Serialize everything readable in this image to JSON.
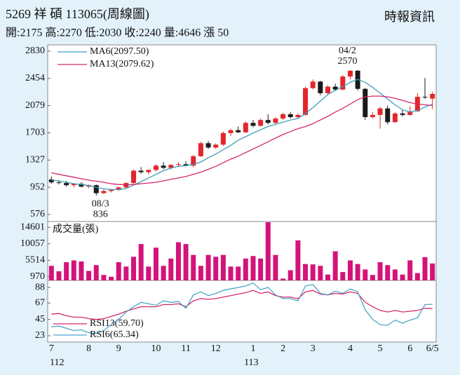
{
  "chart_data": [
    {
      "type": "candlestick",
      "title": "5269 祥 碩 113065(周線圖)",
      "subtitle": "開:2175 高:2270 低:2030 收:2240 量:4646 漲 50",
      "source": "時報資訊",
      "categories": [
        "7",
        null,
        null,
        null,
        null,
        "8",
        null,
        null,
        null,
        "9",
        null,
        null,
        null,
        null,
        "10",
        null,
        null,
        null,
        "11",
        null,
        null,
        null,
        "12",
        null,
        null,
        null,
        null,
        "1",
        null,
        null,
        null,
        "2",
        null,
        null,
        null,
        "3",
        null,
        null,
        null,
        null,
        "4",
        null,
        null,
        null,
        "5",
        null,
        null,
        null,
        "6",
        null,
        null,
        "6/5"
      ],
      "open": [
        1060,
        1020,
        1010,
        980,
        1000,
        960,
        980,
        870,
        900,
        915,
        950,
        1010,
        1180,
        1160,
        1190,
        1250,
        1220,
        1260,
        1270,
        1250,
        1380,
        1560,
        1500,
        1540,
        1700,
        1740,
        1710,
        1840,
        1800,
        1880,
        1840,
        1900,
        1960,
        1920,
        1950,
        2320,
        2410,
        2250,
        2340,
        2300,
        2480,
        2560,
        2310,
        1920,
        1950,
        2040,
        1850,
        1970,
        1950,
        2000,
        2200,
        2175
      ],
      "high": [
        1100,
        1050,
        1040,
        1010,
        1020,
        990,
        990,
        920,
        930,
        960,
        1020,
        1200,
        1230,
        1200,
        1270,
        1300,
        1270,
        1300,
        1310,
        1400,
        1580,
        1590,
        1560,
        1720,
        1760,
        1790,
        1860,
        1880,
        1900,
        1960,
        1920,
        1980,
        1990,
        1970,
        2340,
        2440,
        2420,
        2360,
        2380,
        2500,
        2570,
        2570,
        2320,
        1990,
        2060,
        2080,
        1990,
        2020,
        2070,
        2250,
        2460,
        2270
      ],
      "low": [
        1000,
        990,
        960,
        950,
        950,
        940,
        836,
        860,
        880,
        900,
        930,
        1000,
        1140,
        1130,
        1170,
        1200,
        1200,
        1230,
        1240,
        1230,
        1370,
        1480,
        1480,
        1520,
        1660,
        1700,
        1700,
        1780,
        1790,
        1820,
        1820,
        1880,
        1900,
        1900,
        1940,
        2300,
        2220,
        2220,
        2280,
        2290,
        2440,
        2290,
        1880,
        1900,
        1760,
        1820,
        1840,
        1930,
        1940,
        1990,
        2170,
        2030
      ],
      "close": [
        1020,
        1010,
        980,
        1000,
        960,
        980,
        870,
        900,
        915,
        950,
        1010,
        1180,
        1160,
        1190,
        1250,
        1220,
        1260,
        1270,
        1250,
        1380,
        1560,
        1500,
        1540,
        1700,
        1740,
        1710,
        1840,
        1800,
        1880,
        1840,
        1900,
        1960,
        1920,
        1950,
        2320,
        2410,
        2250,
        2340,
        2300,
        2480,
        2560,
        2310,
        1920,
        1950,
        2040,
        1850,
        1970,
        1950,
        2000,
        2200,
        2190,
        2240
      ],
      "up_color": "#e3262c",
      "down_color": "#1a1a1a",
      "ylim": [
        479,
        2917
      ],
      "yticks": [
        2830,
        2454,
        2079,
        1703,
        1327,
        952,
        576
      ],
      "series": [
        {
          "name": "MA6(2097.50)",
          "color": "#3f9fb8",
          "values": [
            1050,
            1040,
            1020,
            1000,
            990,
            975,
            950,
            930,
            920,
            920,
            935,
            980,
            1030,
            1080,
            1130,
            1180,
            1215,
            1240,
            1250,
            1265,
            1300,
            1360,
            1410,
            1470,
            1530,
            1600,
            1650,
            1700,
            1745,
            1790,
            1820,
            1850,
            1880,
            1900,
            1970,
            2050,
            2140,
            2230,
            2290,
            2340,
            2400,
            2440,
            2400,
            2330,
            2250,
            2170,
            2090,
            2020,
            1990,
            2010,
            2060,
            2097.5
          ]
        },
        {
          "name": "MA13(2079.62)",
          "color": "#d6286e",
          "values": [
            1150,
            1130,
            1110,
            1090,
            1070,
            1050,
            1035,
            1020,
            1000,
            990,
            985,
            990,
            1000,
            1010,
            1020,
            1040,
            1060,
            1080,
            1100,
            1130,
            1160,
            1200,
            1240,
            1290,
            1340,
            1380,
            1430,
            1480,
            1530,
            1580,
            1630,
            1680,
            1720,
            1760,
            1790,
            1830,
            1880,
            1930,
            1990,
            2040,
            2100,
            2160,
            2200,
            2210,
            2210,
            2200,
            2180,
            2150,
            2120,
            2100,
            2090,
            2079.62
          ]
        }
      ],
      "annotations": [
        "08/3",
        "04/2"
      ],
      "year_labels": [
        "112",
        "113"
      ]
    },
    {
      "type": "bar",
      "title": "成交量(張)",
      "color": "#d4137a",
      "values": [
        4000,
        2500,
        5000,
        5500,
        5200,
        2600,
        4200,
        1500,
        1000,
        5000,
        3800,
        6500,
        10000,
        3800,
        9000,
        4000,
        6000,
        10500,
        10000,
        7000,
        4000,
        7000,
        6500,
        7000,
        3800,
        3800,
        6000,
        6700,
        6000,
        16000,
        7000,
        500,
        2800,
        11000,
        4500,
        4400,
        4000,
        1600,
        8000,
        2300,
        5500,
        4500,
        3000,
        1500,
        5000,
        4200,
        3000,
        1600,
        5500,
        2000,
        6400,
        4646
      ],
      "ylim": [
        0,
        16200
      ],
      "yticks": [
        14601,
        10057,
        5514,
        970
      ]
    },
    {
      "type": "line",
      "ylim": [
        14.5,
        97.5
      ],
      "yticks": [
        88,
        67,
        45,
        23
      ],
      "series": [
        {
          "name": "RSI13(59.70)",
          "color": "#d6286e",
          "values": [
            52,
            53,
            50,
            48,
            48,
            46,
            45,
            46,
            49,
            52,
            56,
            59,
            62,
            62,
            62,
            65,
            65,
            66,
            62,
            70,
            73,
            72,
            73,
            75,
            77,
            79,
            81,
            84,
            80,
            82,
            77,
            75,
            75,
            73,
            82,
            84,
            79,
            78,
            80,
            79,
            82,
            80,
            68,
            62,
            57,
            55,
            57,
            55,
            56,
            57,
            60,
            59.7
          ]
        },
        {
          "name": "RSI6(65.34)",
          "color": "#4aa6c6",
          "values": [
            35,
            36,
            33,
            30,
            31,
            27,
            26,
            30,
            38,
            45,
            55,
            62,
            68,
            66,
            64,
            70,
            68,
            69,
            60,
            78,
            82,
            77,
            80,
            84,
            86,
            88,
            90,
            94,
            85,
            88,
            78,
            73,
            73,
            70,
            90,
            92,
            80,
            78,
            83,
            80,
            86,
            82,
            58,
            45,
            38,
            37,
            44,
            40,
            44,
            47,
            65,
            65.34
          ]
        }
      ]
    }
  ]
}
